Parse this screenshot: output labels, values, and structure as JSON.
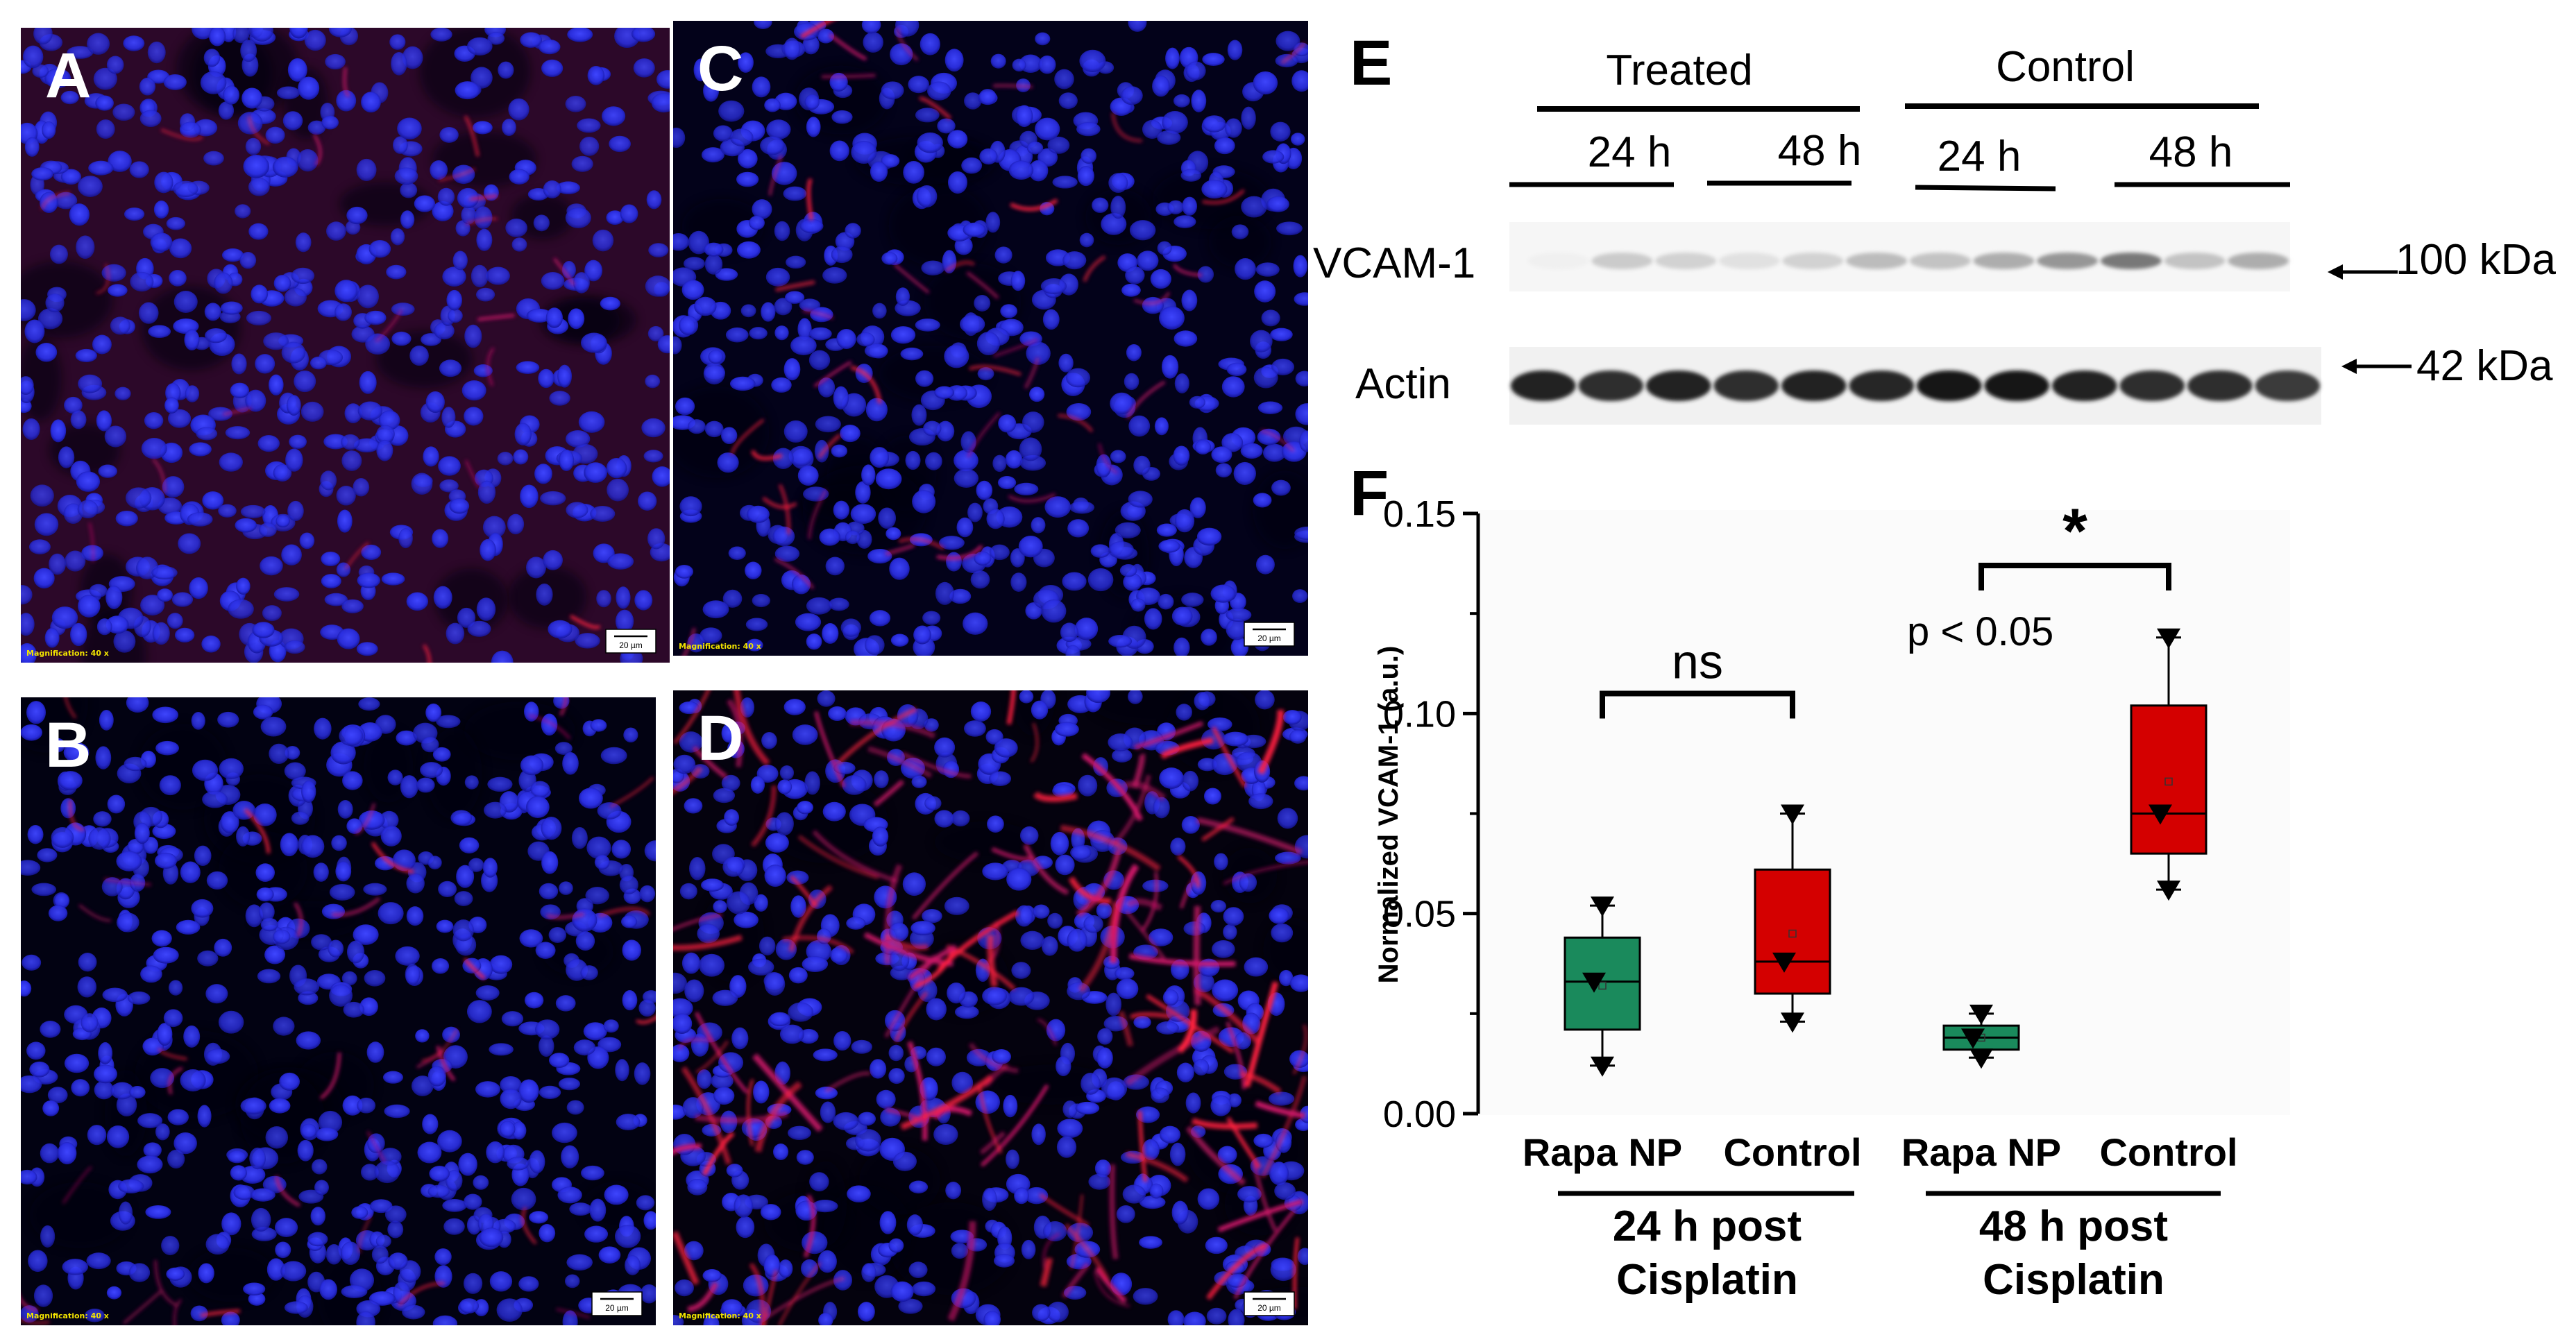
{
  "micrographs": [
    {
      "letter": "A",
      "magnification": "Magnification: 40 x",
      "scale_bar": "20 µm",
      "red_signal": 0.15
    },
    {
      "letter": "B",
      "magnification": "Magnification: 40 x",
      "scale_bar": "20 µm",
      "red_signal": 0.25
    },
    {
      "letter": "C",
      "magnification": "Magnification: 40 x",
      "scale_bar": "20 µm",
      "red_signal": 0.3
    },
    {
      "letter": "D",
      "magnification": "Magnification: 40 x",
      "scale_bar": "20 µm",
      "red_signal": 0.85
    }
  ],
  "blot": {
    "letter": "E",
    "groups": [
      "Treated",
      "Control"
    ],
    "timepoints": [
      "24 h",
      "48 h",
      "24 h",
      "48 h"
    ],
    "rows": [
      {
        "label": "VCAM-1",
        "marker": "100 kDa"
      },
      {
        "label": "Actin",
        "marker": "42 kDa"
      }
    ],
    "vcam_band_intensity": [
      0.1,
      0.35,
      0.3,
      0.2,
      0.3,
      0.45,
      0.4,
      0.55,
      0.7,
      0.9,
      0.4,
      0.55
    ],
    "actin_band_intensity": [
      0.9,
      0.85,
      0.9,
      0.85,
      0.9,
      0.88,
      0.95,
      0.95,
      0.9,
      0.85,
      0.85,
      0.8
    ]
  },
  "chart_data": {
    "letter": "F",
    "type": "box",
    "ylabel": "Normalized VCAM-1 (a.u.)",
    "ylim": [
      0,
      0.15
    ],
    "yticks": [
      "0.00",
      "0.05",
      "0.10",
      "0.15"
    ],
    "categories": [
      "Rapa NP",
      "Control",
      "Rapa NP",
      "Control"
    ],
    "group_labels": [
      "24 h post",
      "Cisplatin",
      "48 h post",
      "Cisplatin"
    ],
    "colors": {
      "Rapa NP": "#1a8a5c",
      "Control": "#d40000"
    },
    "boxes": [
      {
        "category": "Rapa NP",
        "group": "24 h post Cisplatin",
        "min": 0.012,
        "q1": 0.021,
        "median": 0.033,
        "q3": 0.044,
        "max": 0.052,
        "mean": 0.032,
        "points": [
          0.052,
          0.033,
          0.012
        ]
      },
      {
        "category": "Control",
        "group": "24 h post Cisplatin",
        "min": 0.023,
        "q1": 0.03,
        "median": 0.038,
        "q3": 0.061,
        "max": 0.075,
        "mean": 0.045,
        "points": [
          0.075,
          0.038,
          0.023
        ]
      },
      {
        "category": "Rapa NP",
        "group": "48 h post Cisplatin",
        "min": 0.014,
        "q1": 0.016,
        "median": 0.019,
        "q3": 0.022,
        "max": 0.025,
        "mean": 0.019,
        "points": [
          0.025,
          0.019,
          0.014
        ]
      },
      {
        "category": "Control",
        "group": "48 h post Cisplatin",
        "min": 0.056,
        "q1": 0.065,
        "median": 0.075,
        "q3": 0.102,
        "max": 0.119,
        "mean": 0.083,
        "points": [
          0.119,
          0.075,
          0.056
        ]
      }
    ],
    "annotations": [
      {
        "text": "ns",
        "between": [
          0,
          1
        ],
        "level": 0.105
      },
      {
        "text": "*",
        "between": [
          2,
          3
        ],
        "level": 0.137
      },
      {
        "text": "p < 0.05"
      }
    ]
  }
}
